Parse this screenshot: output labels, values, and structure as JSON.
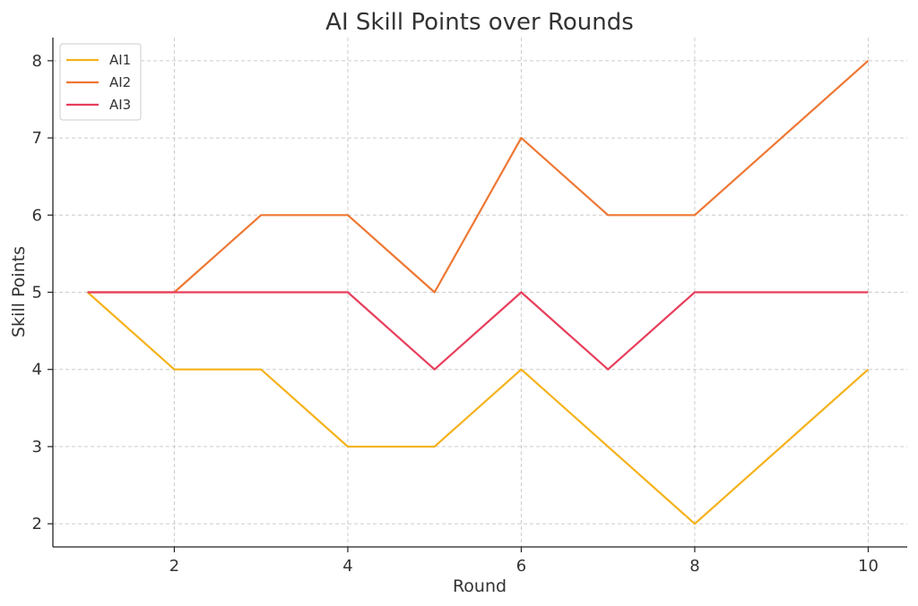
{
  "chart_data": {
    "type": "line",
    "title": "AI Skill Points over Rounds",
    "xlabel": "Round",
    "ylabel": "Skill Points",
    "x": [
      1,
      2,
      3,
      4,
      5,
      6,
      7,
      8,
      9,
      10
    ],
    "xlim": [
      0.6,
      10.45
    ],
    "ylim": [
      1.7,
      8.3
    ],
    "xticks": [
      2,
      4,
      6,
      8,
      10
    ],
    "yticks": [
      2,
      3,
      4,
      5,
      6,
      7,
      8
    ],
    "grid": true,
    "legend": "top-left",
    "series": [
      {
        "name": "AI1",
        "color": "#f5b21b",
        "values": [
          5,
          4,
          4,
          3,
          3,
          4,
          3,
          2,
          3,
          4
        ]
      },
      {
        "name": "AI2",
        "color": "#ee7733",
        "values": [
          5,
          5,
          6,
          6,
          5,
          7,
          6,
          6,
          7,
          8
        ]
      },
      {
        "name": "AI3",
        "color": "#e83e5c",
        "values": [
          5,
          5,
          5,
          5,
          4,
          5,
          4,
          5,
          5,
          5
        ]
      }
    ]
  }
}
